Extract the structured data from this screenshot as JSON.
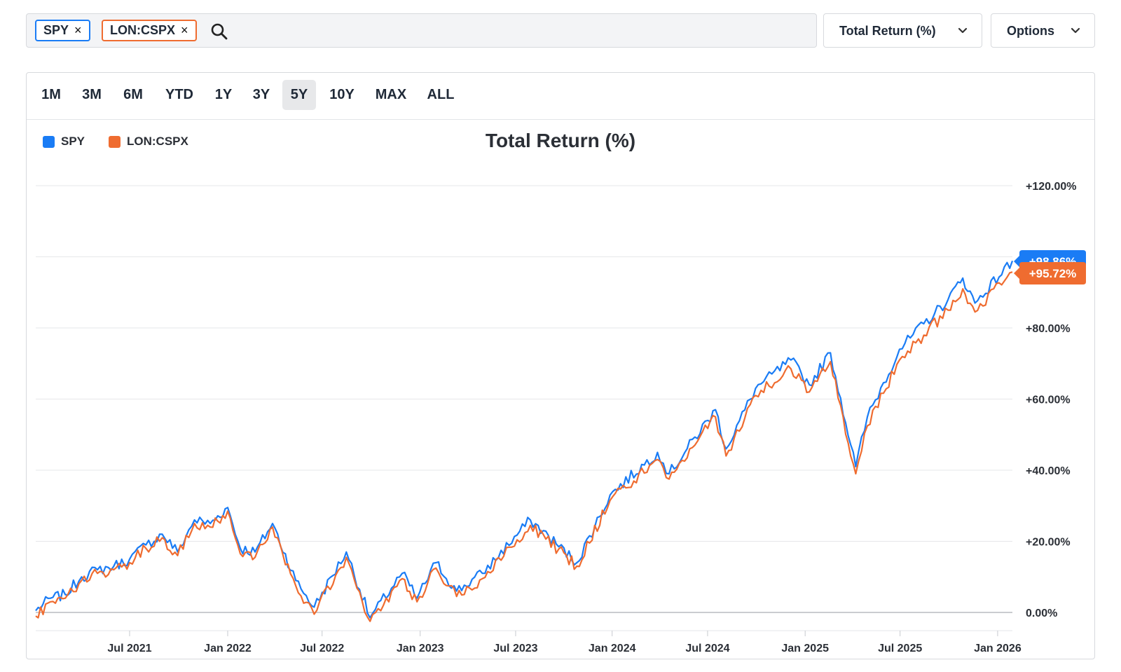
{
  "search": {
    "tickers": [
      {
        "symbol": "SPY",
        "color": "#1a7cf5"
      },
      {
        "symbol": "LON:CSPX",
        "color": "#ef6c30"
      }
    ],
    "remove_glyph": "×"
  },
  "dropdowns": {
    "metric_label": "Total Return (%)",
    "options_label": "Options"
  },
  "ranges": {
    "items": [
      "1M",
      "3M",
      "6M",
      "YTD",
      "1Y",
      "3Y",
      "5Y",
      "10Y",
      "MAX",
      "ALL"
    ],
    "active": "5Y"
  },
  "chart_data": {
    "type": "line",
    "title": "Total Return (%)",
    "xlabel": "",
    "ylabel": "",
    "ylim": [
      -2,
      120
    ],
    "y_ticks": [
      "0.00%",
      "+20.00%",
      "+40.00%",
      "+60.00%",
      "+80.00%",
      "+100.00%",
      "+120.00%"
    ],
    "y_tick_values": [
      0,
      20,
      40,
      60,
      80,
      100,
      120
    ],
    "x_range": [
      "2021-01-04",
      "2026-01-30"
    ],
    "x_ticks": [
      {
        "label": "Jul 2021",
        "date": "2021-07-01"
      },
      {
        "label": "Jan 2022",
        "date": "2022-01-03"
      },
      {
        "label": "Jul 2022",
        "date": "2022-07-01"
      },
      {
        "label": "Jan 2023",
        "date": "2023-01-03"
      },
      {
        "label": "Jul 2023",
        "date": "2023-07-03"
      },
      {
        "label": "Jan 2024",
        "date": "2024-01-02"
      },
      {
        "label": "Jul 2024",
        "date": "2024-07-01"
      },
      {
        "label": "Jan 2025",
        "date": "2025-01-02"
      },
      {
        "label": "Jul 2025",
        "date": "2025-07-01"
      },
      {
        "label": "Jan 2026",
        "date": "2026-01-02"
      }
    ],
    "grid": true,
    "legend_position": "top-left",
    "series": [
      {
        "name": "SPY",
        "color": "#1a7cf5",
        "last_label": "+98.86%",
        "points": [
          [
            "2021-01-04",
            0.5
          ],
          [
            "2021-02-01",
            4
          ],
          [
            "2021-03-01",
            5
          ],
          [
            "2021-04-01",
            10
          ],
          [
            "2021-05-01",
            12
          ],
          [
            "2021-06-01",
            13
          ],
          [
            "2021-07-01",
            15
          ],
          [
            "2021-08-01",
            19
          ],
          [
            "2021-09-01",
            22
          ],
          [
            "2021-09-30",
            17
          ],
          [
            "2021-11-01",
            26
          ],
          [
            "2021-12-01",
            25
          ],
          [
            "2022-01-03",
            29.5
          ],
          [
            "2022-01-27",
            18
          ],
          [
            "2022-02-24",
            17
          ],
          [
            "2022-03-29",
            25
          ],
          [
            "2022-05-12",
            9
          ],
          [
            "2022-06-16",
            1.5
          ],
          [
            "2022-08-16",
            17
          ],
          [
            "2022-09-30",
            -1.5
          ],
          [
            "2022-11-30",
            11
          ],
          [
            "2022-12-28",
            4
          ],
          [
            "2023-02-02",
            14
          ],
          [
            "2023-03-13",
            6
          ],
          [
            "2023-05-01",
            11
          ],
          [
            "2023-07-31",
            26
          ],
          [
            "2023-10-27",
            14
          ],
          [
            "2023-12-29",
            33
          ],
          [
            "2024-03-28",
            45
          ],
          [
            "2024-04-19",
            39
          ],
          [
            "2024-07-16",
            57
          ],
          [
            "2024-08-05",
            46
          ],
          [
            "2024-09-30",
            63
          ],
          [
            "2024-12-06",
            71
          ],
          [
            "2025-01-10",
            64
          ],
          [
            "2025-02-19",
            73
          ],
          [
            "2025-04-08",
            41
          ],
          [
            "2025-04-30",
            55
          ],
          [
            "2025-06-30",
            74
          ],
          [
            "2025-09-30",
            88
          ],
          [
            "2025-10-28",
            94
          ],
          [
            "2025-11-20",
            87
          ],
          [
            "2026-01-30",
            98.86
          ]
        ]
      },
      {
        "name": "LON:CSPX",
        "color": "#ef6c30",
        "last_label": "+95.72%",
        "points": [
          [
            "2021-01-04",
            -1
          ],
          [
            "2021-02-01",
            3
          ],
          [
            "2021-03-01",
            4
          ],
          [
            "2021-04-01",
            9
          ],
          [
            "2021-05-01",
            11
          ],
          [
            "2021-06-01",
            12
          ],
          [
            "2021-07-01",
            14
          ],
          [
            "2021-08-01",
            18
          ],
          [
            "2021-09-01",
            21
          ],
          [
            "2021-09-30",
            16
          ],
          [
            "2021-11-01",
            25
          ],
          [
            "2021-12-01",
            24
          ],
          [
            "2022-01-03",
            28.5
          ],
          [
            "2022-01-27",
            16.5
          ],
          [
            "2022-02-24",
            15.5
          ],
          [
            "2022-03-29",
            24
          ],
          [
            "2022-05-12",
            7.5
          ],
          [
            "2022-06-16",
            -0.5
          ],
          [
            "2022-08-16",
            15.5
          ],
          [
            "2022-09-30",
            -2.5
          ],
          [
            "2022-11-30",
            9.5
          ],
          [
            "2022-12-28",
            3
          ],
          [
            "2023-02-02",
            12.5
          ],
          [
            "2023-03-13",
            4.5
          ],
          [
            "2023-05-01",
            9.5
          ],
          [
            "2023-07-31",
            24.5
          ],
          [
            "2023-10-27",
            13
          ],
          [
            "2023-12-29",
            31.5
          ],
          [
            "2024-03-28",
            43
          ],
          [
            "2024-04-19",
            37.5
          ],
          [
            "2024-07-16",
            55
          ],
          [
            "2024-08-05",
            44
          ],
          [
            "2024-09-30",
            61
          ],
          [
            "2024-12-06",
            68.5
          ],
          [
            "2025-01-10",
            62
          ],
          [
            "2025-02-19",
            70.5
          ],
          [
            "2025-04-08",
            39
          ],
          [
            "2025-04-30",
            52.5
          ],
          [
            "2025-06-30",
            71
          ],
          [
            "2025-09-30",
            85
          ],
          [
            "2025-10-28",
            91
          ],
          [
            "2025-11-20",
            84.5
          ],
          [
            "2026-01-30",
            95.72
          ]
        ]
      }
    ]
  }
}
